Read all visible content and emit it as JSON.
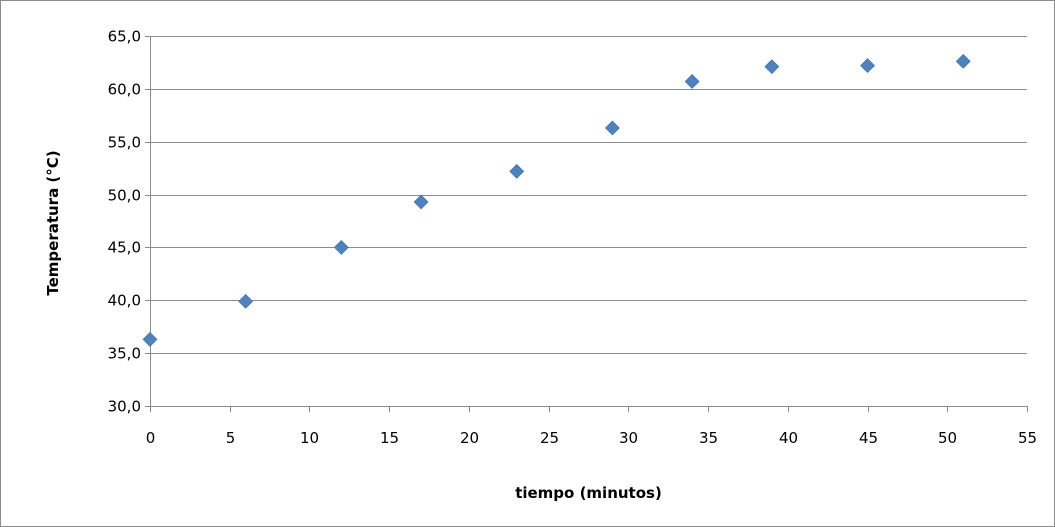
{
  "chart_data": {
    "type": "scatter",
    "title": "",
    "xlabel": "tiempo (minutos)",
    "ylabel": "Temperatura (°C)",
    "xlim": [
      0,
      55
    ],
    "ylim": [
      30,
      65
    ],
    "x_ticks": [
      0,
      5,
      10,
      15,
      20,
      25,
      30,
      35,
      40,
      45,
      50,
      55
    ],
    "x_tick_labels": [
      "0",
      "5",
      "10",
      "15",
      "20",
      "25",
      "30",
      "35",
      "40",
      "45",
      "50",
      "55"
    ],
    "y_ticks": [
      30,
      35,
      40,
      45,
      50,
      55,
      60,
      65
    ],
    "y_tick_labels": [
      "30,0",
      "35,0",
      "40,0",
      "45,0",
      "50,0",
      "55,0",
      "60,0",
      "65,0"
    ],
    "grid": "horizontal",
    "legend": "none",
    "marker": "diamond",
    "marker_color": "#4f81bd",
    "series": [
      {
        "x": [
          0,
          6,
          12,
          17,
          23,
          29,
          34,
          39,
          45,
          51
        ],
        "y": [
          36.3,
          39.9,
          45.0,
          49.3,
          52.2,
          56.3,
          60.7,
          62.1,
          62.2,
          62.6
        ]
      }
    ]
  }
}
